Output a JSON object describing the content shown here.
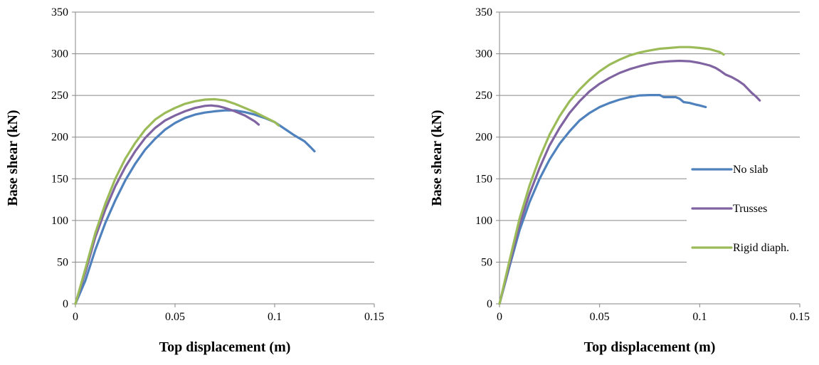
{
  "chart_data": [
    {
      "type": "line",
      "xlabel": "Top displacement (m)",
      "ylabel": "Base shear (kN)",
      "xlim": [
        0,
        0.15
      ],
      "ylim": [
        0,
        350
      ],
      "xticks": [
        0,
        0.05,
        0.1,
        0.15
      ],
      "xtick_labels": [
        "0",
        "0.05",
        "0.1",
        "0.15"
      ],
      "yticks": [
        0,
        50,
        100,
        150,
        200,
        250,
        300,
        350
      ],
      "ytick_labels": [
        "0",
        "50",
        "100",
        "150",
        "200",
        "250",
        "300",
        "350"
      ],
      "grid": "horizontal",
      "legend": null,
      "series": [
        {
          "key": "no-slab",
          "color": "#4F81BD",
          "points": [
            [
              0,
              0
            ],
            [
              0.005,
              28
            ],
            [
              0.01,
              65
            ],
            [
              0.015,
              97
            ],
            [
              0.02,
              124
            ],
            [
              0.025,
              148
            ],
            [
              0.03,
              168
            ],
            [
              0.035,
              185
            ],
            [
              0.04,
              198
            ],
            [
              0.045,
              209
            ],
            [
              0.05,
              217
            ],
            [
              0.055,
              223
            ],
            [
              0.06,
              227
            ],
            [
              0.065,
              229.5
            ],
            [
              0.07,
              231
            ],
            [
              0.075,
              232
            ],
            [
              0.08,
              232
            ],
            [
              0.085,
              230
            ],
            [
              0.09,
              227
            ],
            [
              0.095,
              223
            ],
            [
              0.1,
              218
            ],
            [
              0.105,
              210
            ],
            [
              0.11,
              202
            ],
            [
              0.115,
              195
            ],
            [
              0.118,
              188
            ],
            [
              0.12,
              183
            ]
          ]
        },
        {
          "key": "trusses",
          "color": "#8064A2",
          "points": [
            [
              0,
              0
            ],
            [
              0.005,
              38
            ],
            [
              0.01,
              80
            ],
            [
              0.015,
              113
            ],
            [
              0.02,
              141
            ],
            [
              0.025,
              164
            ],
            [
              0.03,
              183
            ],
            [
              0.035,
              199
            ],
            [
              0.04,
              211
            ],
            [
              0.045,
              220
            ],
            [
              0.05,
              226
            ],
            [
              0.055,
              231
            ],
            [
              0.06,
              235
            ],
            [
              0.065,
              237.5
            ],
            [
              0.068,
              238
            ],
            [
              0.072,
              237
            ],
            [
              0.075,
              235
            ],
            [
              0.08,
              231
            ],
            [
              0.085,
              226
            ],
            [
              0.09,
              219
            ],
            [
              0.092,
              215
            ]
          ]
        },
        {
          "key": "rigid-diaph",
          "color": "#9BBB59",
          "points": [
            [
              0,
              0
            ],
            [
              0.005,
              42
            ],
            [
              0.01,
              85
            ],
            [
              0.015,
              120
            ],
            [
              0.02,
              150
            ],
            [
              0.025,
              174
            ],
            [
              0.03,
              193
            ],
            [
              0.035,
              209
            ],
            [
              0.04,
              221
            ],
            [
              0.045,
              229
            ],
            [
              0.05,
              235
            ],
            [
              0.055,
              240
            ],
            [
              0.06,
              243
            ],
            [
              0.065,
              245
            ],
            [
              0.07,
              245.5
            ],
            [
              0.075,
              244
            ],
            [
              0.08,
              240
            ],
            [
              0.085,
              235
            ],
            [
              0.09,
              230
            ],
            [
              0.095,
              224
            ],
            [
              0.1,
              218
            ],
            [
              0.102,
              214
            ]
          ]
        }
      ]
    },
    {
      "type": "line",
      "xlabel": "Top displacement (m)",
      "ylabel": "Base shear (kN)",
      "xlim": [
        0,
        0.15
      ],
      "ylim": [
        0,
        350
      ],
      "xticks": [
        0,
        0.05,
        0.1,
        0.15
      ],
      "xtick_labels": [
        "0",
        "0.05",
        "0.1",
        "0.15"
      ],
      "yticks": [
        0,
        50,
        100,
        150,
        200,
        250,
        300,
        350
      ],
      "ytick_labels": [
        "0",
        "50",
        "100",
        "150",
        "200",
        "250",
        "300",
        "350"
      ],
      "grid": "horizontal",
      "legend": "right",
      "series": [
        {
          "key": "no-slab",
          "name": "No slab",
          "color": "#4F81BD",
          "points": [
            [
              0,
              0
            ],
            [
              0.005,
              45
            ],
            [
              0.01,
              88
            ],
            [
              0.015,
              122
            ],
            [
              0.02,
              150
            ],
            [
              0.025,
              173
            ],
            [
              0.03,
              192
            ],
            [
              0.035,
              207
            ],
            [
              0.04,
              220
            ],
            [
              0.045,
              229
            ],
            [
              0.05,
              236
            ],
            [
              0.055,
              241
            ],
            [
              0.06,
              245
            ],
            [
              0.065,
              248
            ],
            [
              0.07,
              250
            ],
            [
              0.075,
              250.5
            ],
            [
              0.08,
              250.5
            ],
            [
              0.082,
              248
            ],
            [
              0.085,
              248
            ],
            [
              0.088,
              248
            ],
            [
              0.09,
              246
            ],
            [
              0.092,
              242
            ],
            [
              0.095,
              241
            ],
            [
              0.098,
              239
            ],
            [
              0.1,
              238
            ],
            [
              0.103,
              236
            ]
          ]
        },
        {
          "key": "trusses",
          "name": "Trusses",
          "color": "#8064A2",
          "points": [
            [
              0,
              0
            ],
            [
              0.005,
              48
            ],
            [
              0.01,
              95
            ],
            [
              0.015,
              132
            ],
            [
              0.02,
              163
            ],
            [
              0.025,
              190
            ],
            [
              0.03,
              211
            ],
            [
              0.035,
              229
            ],
            [
              0.04,
              243
            ],
            [
              0.045,
              255
            ],
            [
              0.05,
              264
            ],
            [
              0.055,
              271
            ],
            [
              0.06,
              277
            ],
            [
              0.065,
              281.5
            ],
            [
              0.07,
              285
            ],
            [
              0.075,
              288
            ],
            [
              0.08,
              290
            ],
            [
              0.085,
              291
            ],
            [
              0.09,
              291.5
            ],
            [
              0.095,
              291
            ],
            [
              0.1,
              289
            ],
            [
              0.105,
              286
            ],
            [
              0.108,
              283
            ],
            [
              0.11,
              280
            ],
            [
              0.113,
              275
            ],
            [
              0.116,
              272
            ],
            [
              0.119,
              268
            ],
            [
              0.122,
              263
            ],
            [
              0.124,
              258
            ],
            [
              0.126,
              253
            ],
            [
              0.128,
              249
            ],
            [
              0.13,
              244
            ]
          ]
        },
        {
          "key": "rigid-diaph",
          "name": "Rigid diaph.",
          "color": "#9BBB59",
          "points": [
            [
              0,
              0
            ],
            [
              0.005,
              52
            ],
            [
              0.01,
              102
            ],
            [
              0.015,
              142
            ],
            [
              0.02,
              175
            ],
            [
              0.025,
              203
            ],
            [
              0.03,
              225
            ],
            [
              0.035,
              243
            ],
            [
              0.04,
              257
            ],
            [
              0.045,
              269
            ],
            [
              0.05,
              279
            ],
            [
              0.055,
              287
            ],
            [
              0.06,
              293
            ],
            [
              0.065,
              298
            ],
            [
              0.07,
              301.5
            ],
            [
              0.075,
              304
            ],
            [
              0.08,
              306
            ],
            [
              0.085,
              307
            ],
            [
              0.09,
              308
            ],
            [
              0.095,
              308
            ],
            [
              0.1,
              307
            ],
            [
              0.105,
              305.5
            ],
            [
              0.11,
              302
            ],
            [
              0.112,
              299
            ]
          ]
        }
      ]
    }
  ]
}
